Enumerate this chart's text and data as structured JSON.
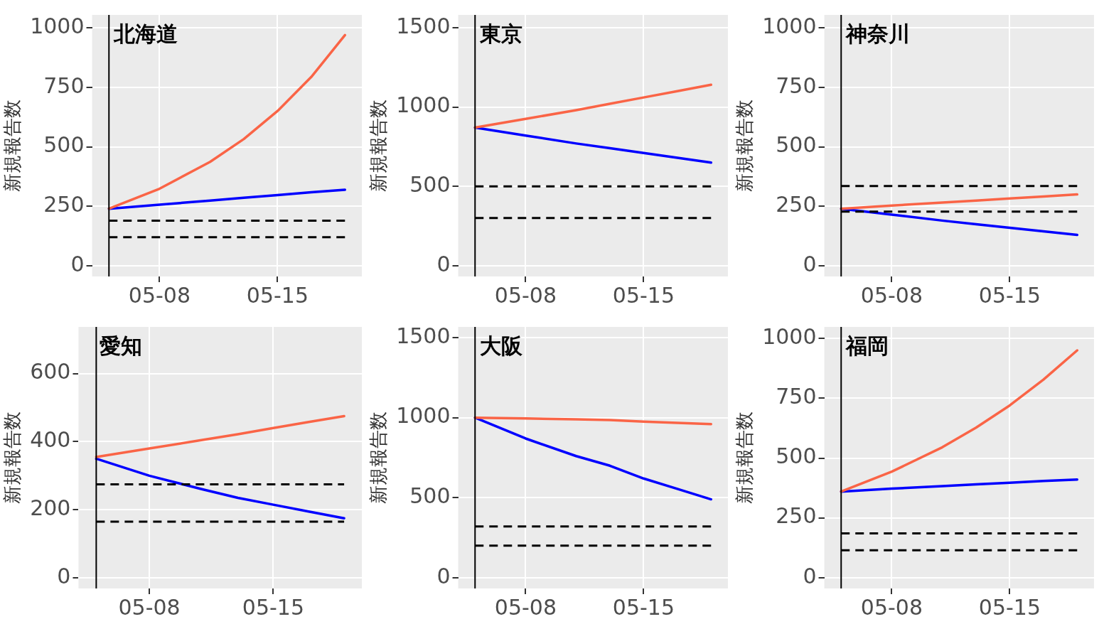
{
  "chart_data": [
    {
      "type": "line",
      "title": "北海道",
      "ylabel": "新規報告数",
      "x": [
        "--05-05",
        "--05-08",
        "--05-11",
        "--05-13",
        "--05-15",
        "--05-17",
        "--05-19"
      ],
      "xlim": [
        "--05-04",
        "--05-20"
      ],
      "xticks": [
        {
          "value": "--05-08",
          "label": "05-08"
        },
        {
          "value": "--05-15",
          "label": "05-15"
        }
      ],
      "ylim": [
        -45,
        1055
      ],
      "yticks": [
        0,
        250,
        500,
        750,
        1000
      ],
      "grid": true,
      "series": [
        {
          "color": "#fa6446",
          "values": [
            240,
            324,
            437,
            533,
            651,
            794,
            970
          ]
        },
        {
          "color": "#0000ff",
          "values": [
            240,
            257,
            274,
            286,
            297,
            309,
            320
          ]
        }
      ],
      "ref_lines": [
        {
          "axis": "x",
          "value": "--05-05",
          "color": "#000000",
          "line_style": "solid"
        },
        {
          "axis": "y",
          "value": 190,
          "color": "#000000",
          "line_style": "dashed"
        },
        {
          "axis": "y",
          "value": 120,
          "color": "#000000",
          "line_style": "dashed"
        }
      ]
    },
    {
      "type": "line",
      "title": "東京",
      "ylabel": "新規報告数",
      "x": [
        "--05-05",
        "--05-08",
        "--05-11",
        "--05-13",
        "--05-15",
        "--05-17",
        "--05-19"
      ],
      "xlim": [
        "--05-04",
        "--05-20"
      ],
      "xticks": [
        {
          "value": "--05-08",
          "label": "05-08"
        },
        {
          "value": "--05-15",
          "label": "05-15"
        }
      ],
      "ylim": [
        -68,
        1580
      ],
      "yticks": [
        0,
        500,
        1000,
        1500
      ],
      "grid": true,
      "series": [
        {
          "color": "#fa6446",
          "values": [
            870,
            925,
            980,
            1020,
            1060,
            1100,
            1140
          ]
        },
        {
          "color": "#0000ff",
          "values": [
            870,
            820,
            770,
            740,
            710,
            680,
            650
          ]
        }
      ],
      "ref_lines": [
        {
          "axis": "x",
          "value": "--05-05",
          "color": "#000000",
          "line_style": "solid"
        },
        {
          "axis": "y",
          "value": 500,
          "color": "#000000",
          "line_style": "dashed"
        },
        {
          "axis": "y",
          "value": 300,
          "color": "#000000",
          "line_style": "dashed"
        }
      ]
    },
    {
      "type": "line",
      "title": "神奈川",
      "ylabel": "新規報告数",
      "x": [
        "--05-05",
        "--05-08",
        "--05-11",
        "--05-13",
        "--05-15",
        "--05-17",
        "--05-19"
      ],
      "xlim": [
        "--05-04",
        "--05-20"
      ],
      "xticks": [
        {
          "value": "--05-08",
          "label": "05-08"
        },
        {
          "value": "--05-15",
          "label": "05-15"
        }
      ],
      "ylim": [
        -45,
        1055
      ],
      "yticks": [
        0,
        250,
        500,
        750,
        1000
      ],
      "grid": true,
      "series": [
        {
          "color": "#fa6446",
          "values": [
            240,
            253,
            266,
            274,
            283,
            291,
            300
          ]
        },
        {
          "color": "#0000ff",
          "values": [
            240,
            215,
            190,
            175,
            160,
            145,
            130
          ]
        }
      ],
      "ref_lines": [
        {
          "axis": "x",
          "value": "--05-05",
          "color": "#000000",
          "line_style": "solid"
        },
        {
          "axis": "y",
          "value": 335,
          "color": "#000000",
          "line_style": "dashed"
        },
        {
          "axis": "y",
          "value": 228,
          "color": "#000000",
          "line_style": "dashed"
        }
      ]
    },
    {
      "type": "line",
      "title": "愛知",
      "ylabel": "新規報告数",
      "x": [
        "--05-05",
        "--05-08",
        "--05-11",
        "--05-13",
        "--05-15",
        "--05-17",
        "--05-19"
      ],
      "xlim": [
        "--05-04",
        "--05-20"
      ],
      "xticks": [
        {
          "value": "--05-08",
          "label": "05-08"
        },
        {
          "value": "--05-15",
          "label": "05-15"
        }
      ],
      "ylim": [
        -31,
        737
      ],
      "yticks": [
        0,
        200,
        400,
        600
      ],
      "grid": true,
      "series": [
        {
          "color": "#fa6446",
          "values": [
            355,
            380,
            405,
            422,
            440,
            458,
            475
          ]
        },
        {
          "color": "#0000ff",
          "values": [
            350,
            300,
            260,
            235,
            215,
            195,
            175
          ]
        }
      ],
      "ref_lines": [
        {
          "axis": "x",
          "value": "--05-05",
          "color": "#000000",
          "line_style": "solid"
        },
        {
          "axis": "y",
          "value": 275,
          "color": "#000000",
          "line_style": "dashed"
        },
        {
          "axis": "y",
          "value": 165,
          "color": "#000000",
          "line_style": "dashed"
        }
      ]
    },
    {
      "type": "line",
      "title": "大阪",
      "ylabel": "新規報告数",
      "x": [
        "--05-05",
        "--05-08",
        "--05-11",
        "--05-13",
        "--05-15",
        "--05-17",
        "--05-19"
      ],
      "xlim": [
        "--05-04",
        "--05-20"
      ],
      "xticks": [
        {
          "value": "--05-08",
          "label": "05-08"
        },
        {
          "value": "--05-15",
          "label": "05-15"
        }
      ],
      "ylim": [
        -67,
        1567
      ],
      "yticks": [
        0,
        500,
        1000,
        1500
      ],
      "grid": true,
      "series": [
        {
          "color": "#fa6446",
          "values": [
            1000,
            995,
            990,
            985,
            975,
            968,
            960
          ]
        },
        {
          "color": "#0000ff",
          "values": [
            1000,
            870,
            760,
            700,
            620,
            555,
            490
          ]
        }
      ],
      "ref_lines": [
        {
          "axis": "x",
          "value": "--05-05",
          "color": "#000000",
          "line_style": "solid"
        },
        {
          "axis": "y",
          "value": 320,
          "color": "#000000",
          "line_style": "dashed"
        },
        {
          "axis": "y",
          "value": 200,
          "color": "#000000",
          "line_style": "dashed"
        }
      ]
    },
    {
      "type": "line",
      "title": "福岡",
      "ylabel": "新規報告数",
      "x": [
        "--05-05",
        "--05-08",
        "--05-11",
        "--05-13",
        "--05-15",
        "--05-17",
        "--05-19"
      ],
      "xlim": [
        "--05-04",
        "--05-20"
      ],
      "xticks": [
        {
          "value": "--05-08",
          "label": "05-08"
        },
        {
          "value": "--05-15",
          "label": "05-15"
        }
      ],
      "ylim": [
        -45,
        1048
      ],
      "yticks": [
        0,
        250,
        500,
        750,
        1000
      ],
      "grid": true,
      "series": [
        {
          "color": "#fa6446",
          "values": [
            360,
            443,
            545,
            627,
            720,
            828,
            950
          ]
        },
        {
          "color": "#0000ff",
          "values": [
            360,
            372,
            383,
            390,
            397,
            404,
            410
          ]
        }
      ],
      "ref_lines": [
        {
          "axis": "x",
          "value": "--05-05",
          "color": "#000000",
          "line_style": "solid"
        },
        {
          "axis": "y",
          "value": 185,
          "color": "#000000",
          "line_style": "dashed"
        },
        {
          "axis": "y",
          "value": 115,
          "color": "#000000",
          "line_style": "dashed"
        }
      ]
    }
  ]
}
